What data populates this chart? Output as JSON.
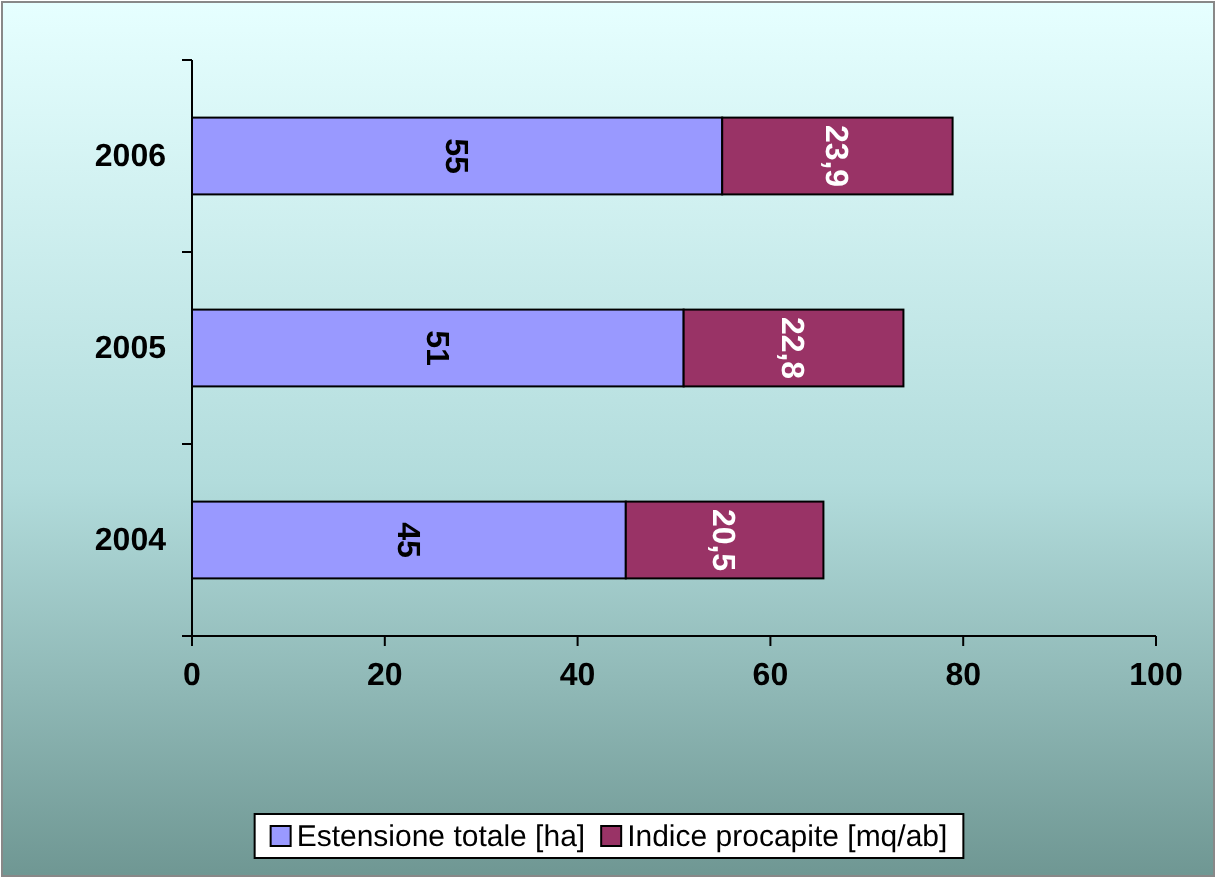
{
  "chart_data": {
    "type": "bar",
    "orientation": "horizontal",
    "stacked": true,
    "categories": [
      "2006",
      "2005",
      "2004"
    ],
    "series": [
      {
        "name": "Estensione totale [ha]",
        "color": "#9999ff",
        "values": [
          55,
          51,
          45
        ],
        "value_labels": [
          "55",
          "51",
          "45"
        ]
      },
      {
        "name": "Indice procapite [mq/ab]",
        "color": "#993366",
        "values": [
          23.9,
          22.8,
          20.5
        ],
        "value_labels": [
          "23,9",
          "22,8",
          "20,5"
        ]
      }
    ],
    "xlim": [
      0,
      100
    ],
    "xticks": [
      0,
      20,
      40,
      60,
      80,
      100
    ],
    "legend": "bottom"
  }
}
